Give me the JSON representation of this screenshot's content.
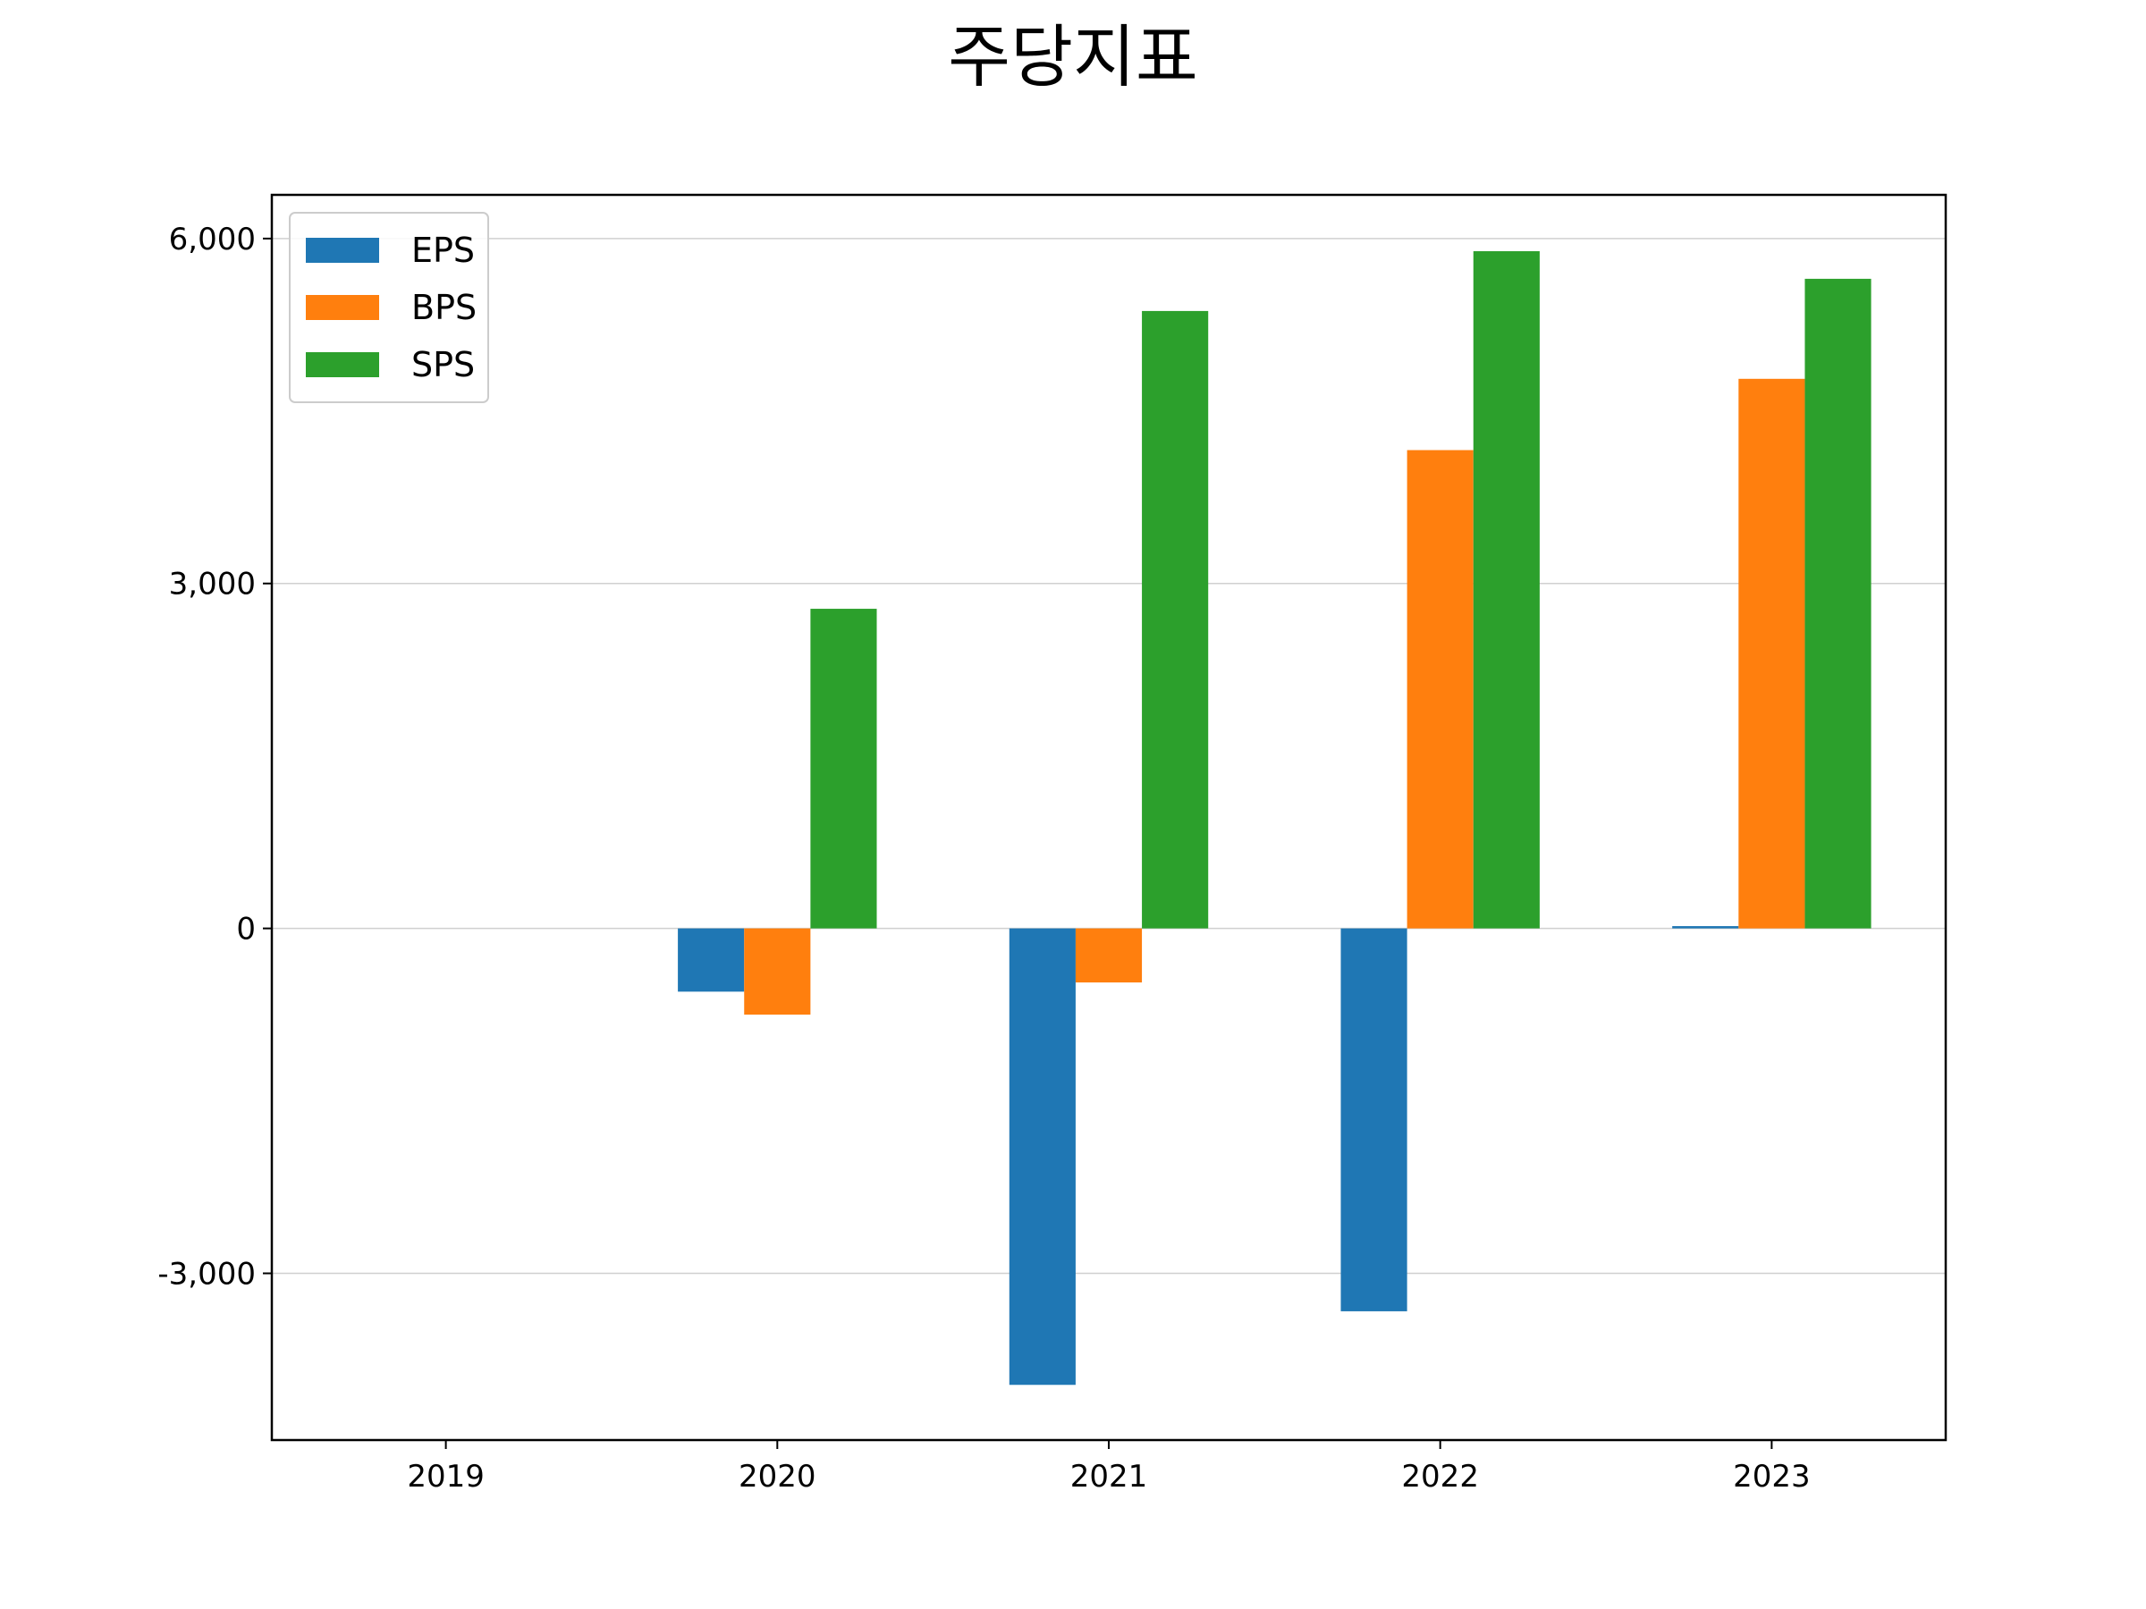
{
  "chart_data": {
    "type": "bar",
    "title": "주당지표",
    "xlabel": "",
    "ylabel": "",
    "categories": [
      "2019",
      "2020",
      "2021",
      "2022",
      "2023"
    ],
    "series": [
      {
        "name": "EPS",
        "color": "#1f77b4",
        "values": [
          0,
          -550,
          -3970,
          -3330,
          20
        ]
      },
      {
        "name": "BPS",
        "color": "#ff7f0e",
        "values": [
          0,
          -750,
          -470,
          4160,
          4780
        ]
      },
      {
        "name": "SPS",
        "color": "#2ca02c",
        "values": [
          0,
          2780,
          5370,
          5890,
          5650
        ]
      }
    ],
    "ylim": [
      -4450,
      6380
    ],
    "yticks": [
      -3000,
      0,
      3000,
      6000
    ],
    "ytick_labels": [
      "-3,000",
      "0",
      "3,000",
      "6,000"
    ],
    "grid": "y",
    "legend_position": "top-left"
  }
}
